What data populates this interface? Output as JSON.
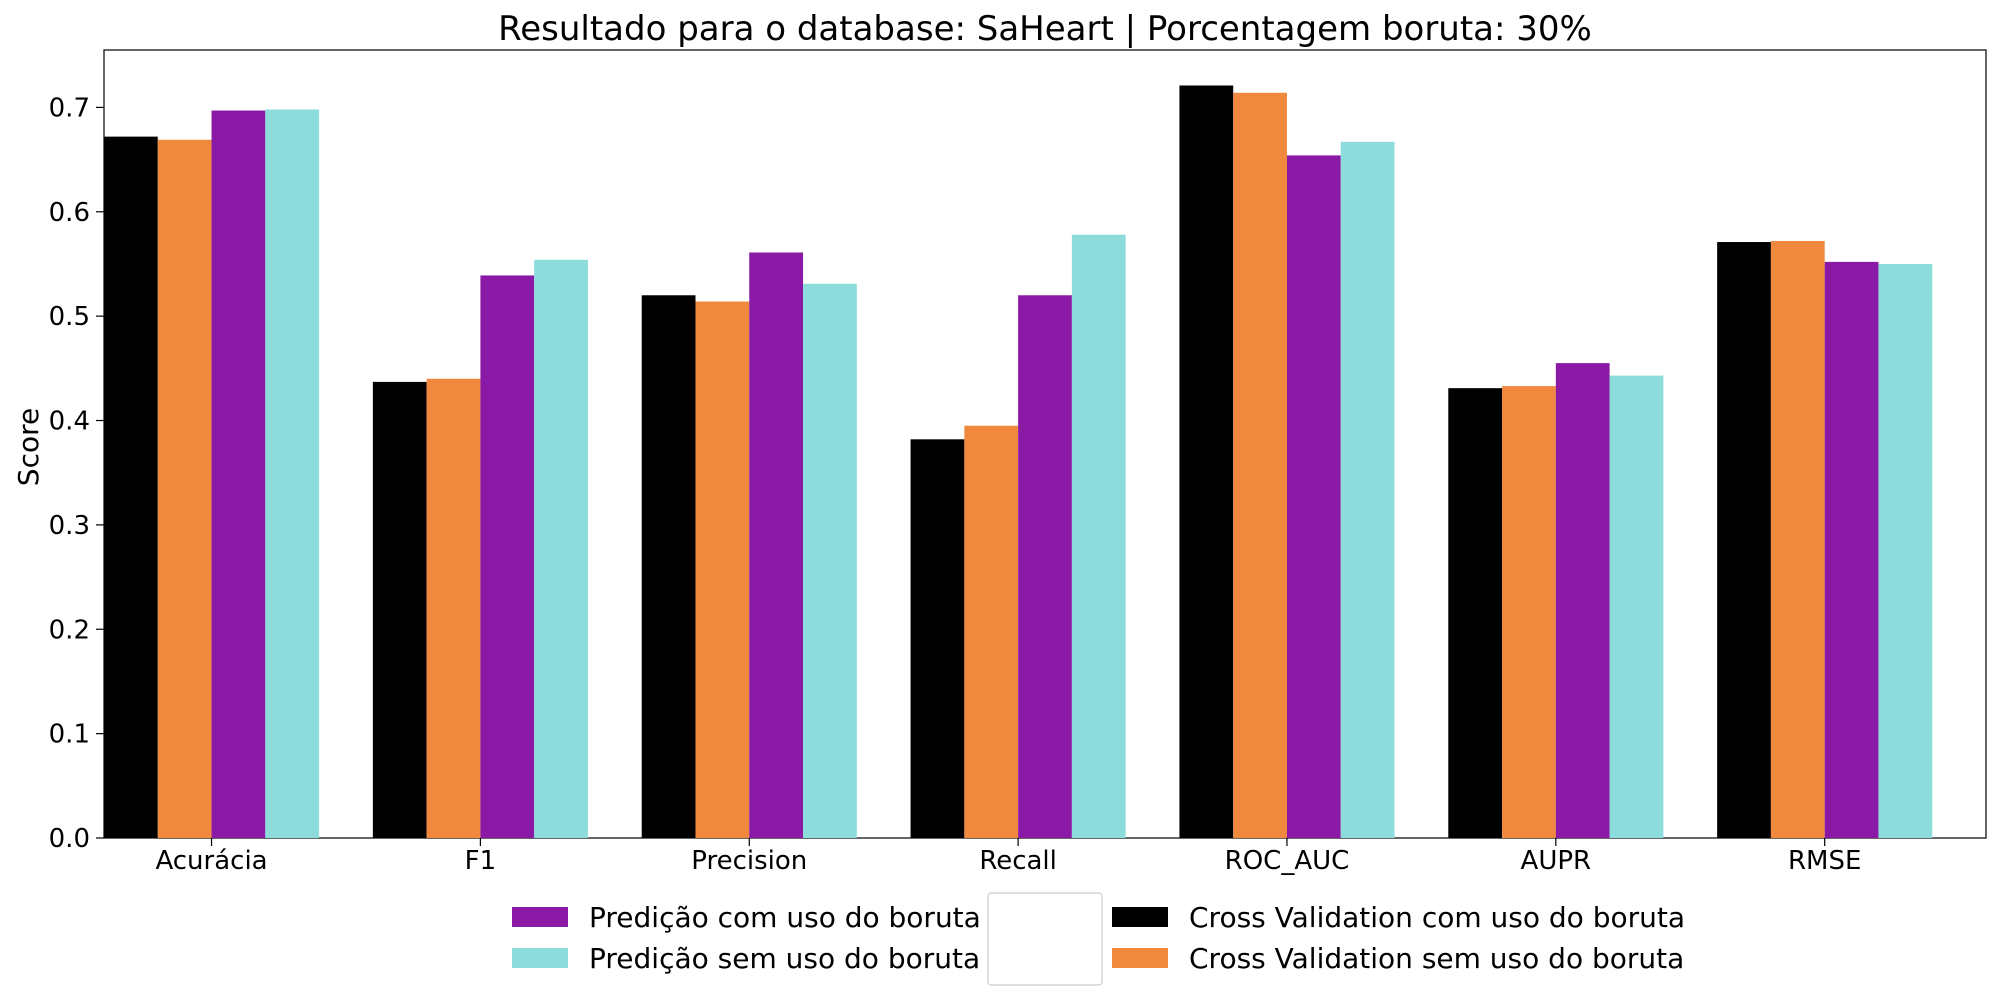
{
  "chart_data": {
    "type": "bar",
    "title": "Resultado para o database: SaHeart | Porcentagem boruta: 30%",
    "xlabel": "",
    "ylabel": "Score",
    "ylim": [
      0,
      0.755
    ],
    "yticks": [
      "0.0",
      "0.1",
      "0.2",
      "0.3",
      "0.4",
      "0.5",
      "0.6",
      "0.7"
    ],
    "categories": [
      "Acurácia",
      "F1",
      "Precision",
      "Recall",
      "ROC_AUC",
      "AUPR",
      "RMSE"
    ],
    "grid": false,
    "legend_position": "bottom-center",
    "series": [
      {
        "name": "Cross Validation com uso do boruta",
        "color": "#000000",
        "values": [
          0.672,
          0.437,
          0.52,
          0.382,
          0.721,
          0.431,
          0.571
        ]
      },
      {
        "name": "Cross Validation sem uso do boruta",
        "color": "#f0883e",
        "values": [
          0.669,
          0.44,
          0.514,
          0.395,
          0.714,
          0.433,
          0.572
        ]
      },
      {
        "name": "Predição com uso do boruta",
        "color": "#8a1aa6",
        "values": [
          0.697,
          0.539,
          0.561,
          0.52,
          0.654,
          0.455,
          0.552
        ]
      },
      {
        "name": "Predição sem uso do boruta",
        "color": "#8ddcdc",
        "values": [
          0.698,
          0.554,
          0.531,
          0.578,
          0.667,
          0.443,
          0.55
        ]
      }
    ],
    "legend_order": [
      2,
      3,
      0,
      1
    ]
  }
}
